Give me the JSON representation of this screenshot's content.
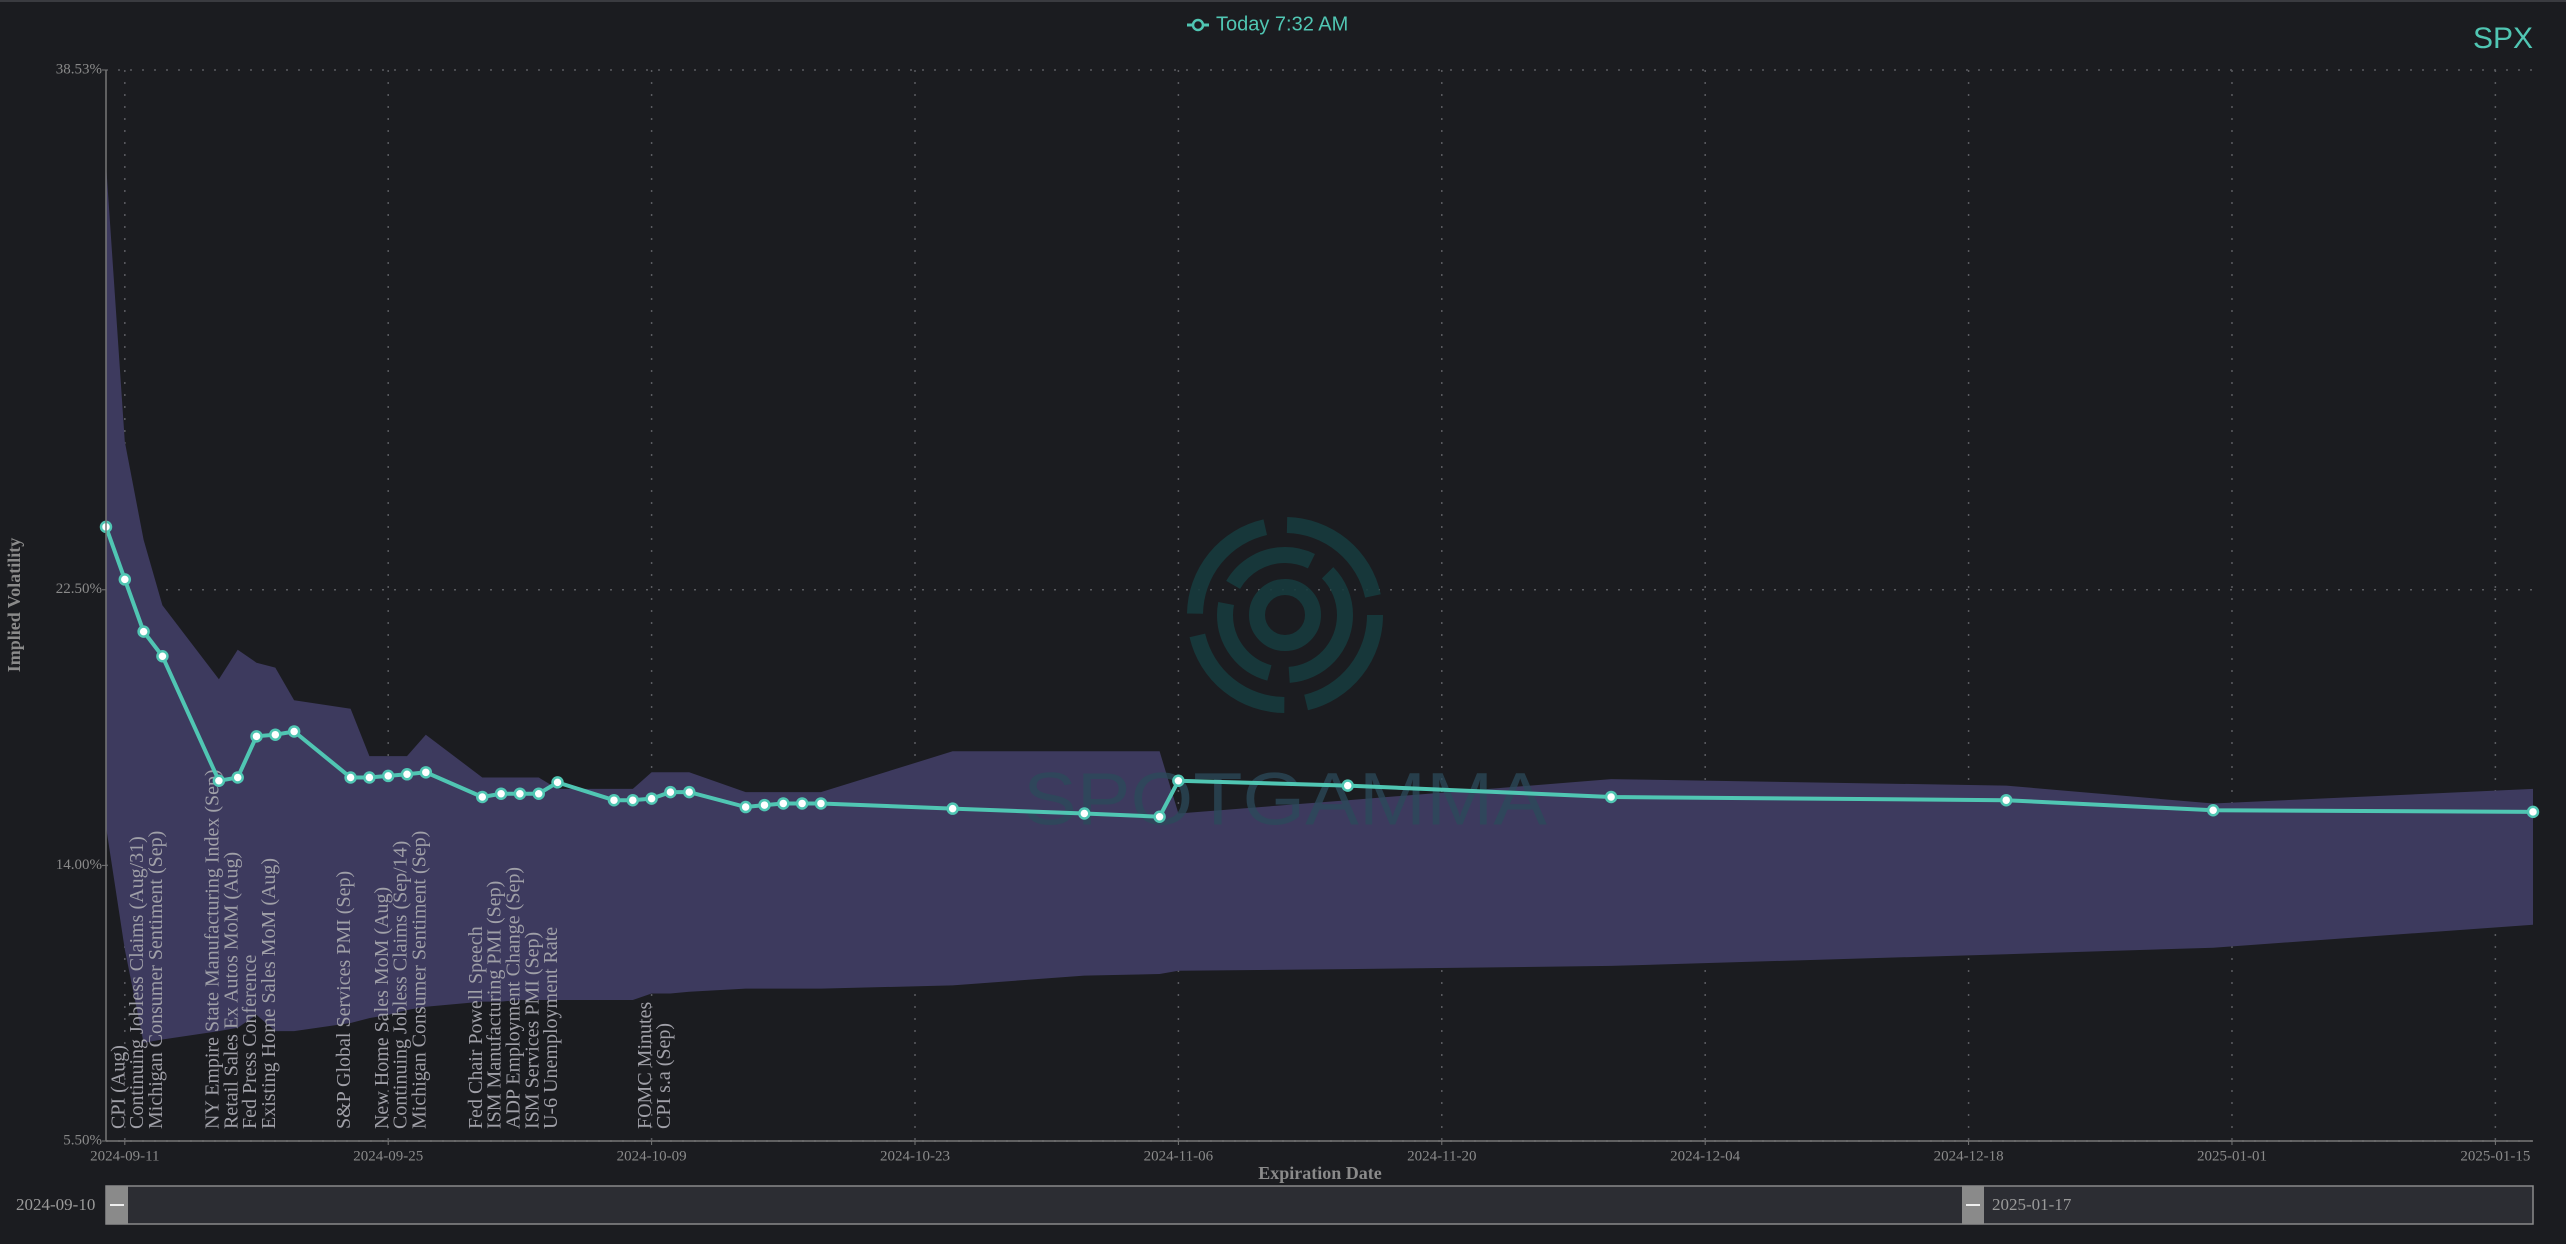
{
  "chart_data": {
    "type": "line",
    "symbol": "SPX",
    "xlabel": "Expiration Date",
    "ylabel": "Implied Volatility",
    "watermark": "SPOTGAMMA",
    "x": [
      "2024-09-10",
      "2024-09-11",
      "2024-09-12",
      "2024-09-13",
      "2024-09-16",
      "2024-09-17",
      "2024-09-18",
      "2024-09-19",
      "2024-09-20",
      "2024-09-23",
      "2024-09-24",
      "2024-09-25",
      "2024-09-26",
      "2024-09-27",
      "2024-09-30",
      "2024-10-01",
      "2024-10-02",
      "2024-10-03",
      "2024-10-04",
      "2024-10-07",
      "2024-10-08",
      "2024-10-09",
      "2024-10-10",
      "2024-10-11",
      "2024-10-14",
      "2024-10-15",
      "2024-10-16",
      "2024-10-17",
      "2024-10-18",
      "2024-10-25",
      "2024-11-01",
      "2024-11-05",
      "2024-11-06",
      "2024-11-15",
      "2024-11-29",
      "2024-12-20",
      "2024-12-31",
      "2025-01-17"
    ],
    "series": [
      {
        "name": "Today 7:32 AM",
        "color": "#50c6b3",
        "values": [
          24.44,
          22.82,
          21.21,
          20.45,
          16.61,
          16.71,
          17.98,
          18.03,
          18.13,
          16.71,
          16.71,
          16.76,
          16.81,
          16.87,
          16.11,
          16.21,
          16.21,
          16.21,
          16.56,
          16.01,
          16.01,
          16.06,
          16.26,
          16.26,
          15.8,
          15.86,
          15.91,
          15.91,
          15.91,
          15.75,
          15.6,
          15.5,
          16.61,
          16.46,
          16.11,
          16.01,
          15.7,
          15.65
        ]
      }
    ],
    "band": {
      "color": "#3d3a5e",
      "upper": [
        35.65,
        27.07,
        24.04,
        22.02,
        19.74,
        20.65,
        20.25,
        20.1,
        19.09,
        18.83,
        17.37,
        17.37,
        17.37,
        18.03,
        16.71,
        16.71,
        16.71,
        16.71,
        16.36,
        16.36,
        16.36,
        16.87,
        16.87,
        16.87,
        16.26,
        16.26,
        16.26,
        16.26,
        16.26,
        17.52,
        17.52,
        17.52,
        15.6,
        16.01,
        16.66,
        16.46,
        15.91,
        16.36
      ],
      "lower": [
        15.2,
        11.41,
        8.53,
        8.63,
        8.89,
        8.99,
        9.39,
        8.89,
        8.89,
        9.14,
        9.29,
        9.39,
        9.54,
        9.64,
        9.8,
        9.8,
        9.85,
        9.85,
        9.85,
        9.85,
        9.85,
        10.05,
        10.05,
        10.1,
        10.2,
        10.2,
        10.2,
        10.2,
        10.2,
        10.3,
        10.6,
        10.65,
        10.75,
        10.8,
        10.9,
        11.26,
        11.46,
        12.17
      ]
    },
    "xlim": [
      "2024-09-10",
      "2025-01-17"
    ],
    "xticks": [
      "2024-09-11",
      "2024-09-25",
      "2024-10-09",
      "2024-10-23",
      "2024-11-06",
      "2024-11-20",
      "2024-12-04",
      "2024-12-18",
      "2025-01-01",
      "2025-01-15"
    ],
    "ylim": [
      5.5,
      38.53
    ],
    "yticks": [
      {
        "value": 5.5,
        "label": "5.50%"
      },
      {
        "value": 14,
        "label": "14.00%"
      },
      {
        "value": 22.5,
        "label": "22.50%"
      },
      {
        "value": 38.53,
        "label": "38.53%"
      }
    ],
    "grid": true,
    "events": [
      {
        "date": "2024-09-11",
        "label": "CPI (Aug)"
      },
      {
        "date": "2024-09-12",
        "label": "Continuing Jobless Claims (Aug/31)"
      },
      {
        "date": "2024-09-13",
        "label": "Michigan Consumer Sentiment (Sep)"
      },
      {
        "date": "2024-09-16",
        "label": "NY Empire State Manufacturing Index (Sep)"
      },
      {
        "date": "2024-09-17",
        "label": "Retail Sales Ex Autos MoM (Aug)"
      },
      {
        "date": "2024-09-18",
        "label": "Fed Press Conference"
      },
      {
        "date": "2024-09-19",
        "label": "Existing Home Sales MoM (Aug)"
      },
      {
        "date": "2024-09-23",
        "label": "S&P Global Services PMI (Sep)"
      },
      {
        "date": "2024-09-25",
        "label": "New Home Sales MoM (Aug)"
      },
      {
        "date": "2024-09-26",
        "label": "Continuing Jobless Claims (Sep/14)"
      },
      {
        "date": "2024-09-27",
        "label": "Michigan Consumer Sentiment (Sep)"
      },
      {
        "date": "2024-09-30",
        "label": "Fed Chair Powell Speech"
      },
      {
        "date": "2024-10-01",
        "label": "ISM Manufacturing PMI (Sep)"
      },
      {
        "date": "2024-10-02",
        "label": "ADP Employment Change (Sep)"
      },
      {
        "date": "2024-10-03",
        "label": "ISM Services PMI (Sep)"
      },
      {
        "date": "2024-10-04",
        "label": "U-6 Unemployment Rate"
      },
      {
        "date": "2024-10-09",
        "label": "FOMC Minutes"
      },
      {
        "date": "2024-10-10",
        "label": "CPI s.a (Sep)"
      }
    ],
    "range": {
      "start": "2024-09-10",
      "end": "2025-01-17"
    }
  }
}
